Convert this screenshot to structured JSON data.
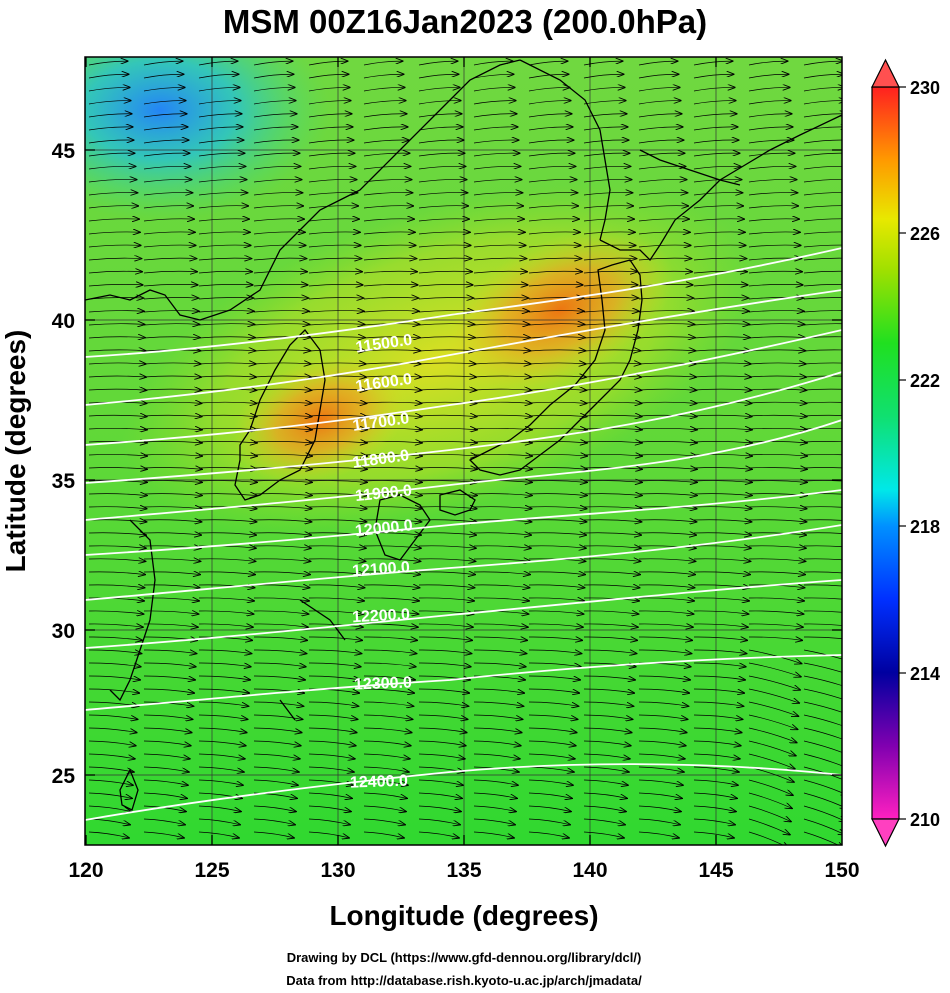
{
  "figure": {
    "title": "MSM 00Z16Jan2023 (200.0hPa)",
    "xlabel": "Longitude (degrees)",
    "ylabel": "Latitude  (degrees)",
    "credit_line1": "Drawing by DCL (https://www.gfd-dennou.org/library/dcl/)",
    "credit_line2": "Data from http://database.rish.kyoto-u.ac.jp/arch/jmadata/"
  },
  "map": {
    "type": "filled-contour map with height contours and wind vectors",
    "lon_range": [
      120,
      150
    ],
    "lat_range": [
      22.5,
      47.5
    ],
    "x_ticks": [
      "120",
      "125",
      "130",
      "135",
      "140",
      "145",
      "150"
    ],
    "y_ticks": [
      "25",
      "30",
      "35",
      "40",
      "45"
    ],
    "grid": true,
    "contour_labels": [
      "11500.0",
      "11600.0",
      "11700.0",
      "11800.0",
      "11900.0",
      "12000.0",
      "12100.0",
      "12200.0",
      "12300.0",
      "12400.0"
    ],
    "contour_color": "#ffffff",
    "vector_color": "#000000"
  },
  "colorbar": {
    "tick_labels": [
      "230",
      "226",
      "222",
      "218",
      "214",
      "210"
    ],
    "range": [
      210,
      230
    ],
    "colors": {
      "max": "#ff2020",
      "orange": "#ff9a00",
      "yellow": "#e8e800",
      "green": "#20e020",
      "cyan": "#00e8e8",
      "blue": "#0030ff",
      "navy": "#0000a0",
      "purple": "#8000b0",
      "min": "#ff20c0"
    }
  }
}
